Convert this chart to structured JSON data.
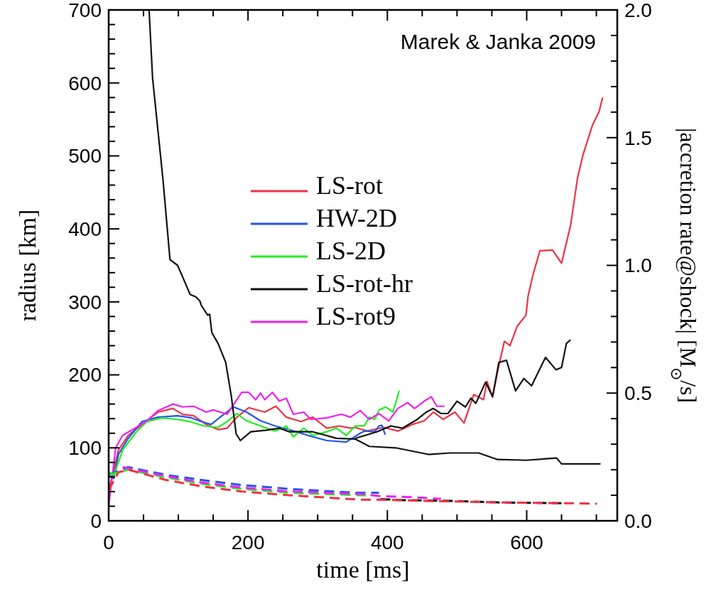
{
  "chart_data": {
    "type": "line",
    "xlabel": "time [ms]",
    "ylabel": "radius [km]",
    "y2label": "|accretion rate@shock| [M$_{⊙}$/s]",
    "annotations": [
      "Marek & Janka 2009"
    ],
    "xlim": [
      0,
      730
    ],
    "xticks": [
      0,
      {
        "value": 50,
        "label": null
      },
      {
        "value": 100,
        "label": null
      },
      {
        "value": 150,
        "label": null
      },
      200,
      {
        "value": 250,
        "label": null
      },
      {
        "value": 300,
        "label": null
      },
      {
        "value": 350,
        "label": null
      },
      400,
      {
        "value": 450,
        "label": null
      },
      {
        "value": 500,
        "label": null
      },
      {
        "value": 550,
        "label": null
      },
      600,
      {
        "value": 650,
        "label": null
      },
      {
        "value": 700,
        "label": null
      }
    ],
    "ylim": [
      0,
      700
    ],
    "yticks": [
      0,
      {
        "value": 20,
        "label": null
      },
      {
        "value": 40,
        "label": null
      },
      {
        "value": 60,
        "label": null
      },
      {
        "value": 80,
        "label": null
      },
      100,
      {
        "value": 120,
        "label": null
      },
      {
        "value": 140,
        "label": null
      },
      {
        "value": 160,
        "label": null
      },
      {
        "value": 180,
        "label": null
      },
      200,
      {
        "value": 220,
        "label": null
      },
      {
        "value": 240,
        "label": null
      },
      {
        "value": 260,
        "label": null
      },
      {
        "value": 280,
        "label": null
      },
      300,
      {
        "value": 320,
        "label": null
      },
      {
        "value": 340,
        "label": null
      },
      {
        "value": 360,
        "label": null
      },
      {
        "value": 380,
        "label": null
      },
      400,
      {
        "value": 420,
        "label": null
      },
      {
        "value": 440,
        "label": null
      },
      {
        "value": 460,
        "label": null
      },
      {
        "value": 480,
        "label": null
      },
      500,
      {
        "value": 520,
        "label": null
      },
      {
        "value": 540,
        "label": null
      },
      {
        "value": 560,
        "label": null
      },
      {
        "value": 580,
        "label": null
      },
      600,
      {
        "value": 620,
        "label": null
      },
      {
        "value": 640,
        "label": null
      },
      {
        "value": 660,
        "label": null
      },
      {
        "value": 680,
        "label": null
      },
      700
    ],
    "y2lim": [
      0,
      2
    ],
    "y2ticks": [
      {
        "value": 0,
        "label": "0.0"
      },
      {
        "value": 0.1,
        "label": null
      },
      {
        "value": 0.2,
        "label": null
      },
      {
        "value": 0.3,
        "label": null
      },
      {
        "value": 0.4,
        "label": null
      },
      0.5,
      {
        "value": 0.6,
        "label": null
      },
      {
        "value": 0.7,
        "label": null
      },
      {
        "value": 0.8,
        "label": null
      },
      {
        "value": 0.9,
        "label": null
      },
      {
        "value": 1,
        "label": "1.0"
      },
      {
        "value": 1.1,
        "label": null
      },
      {
        "value": 1.2,
        "label": null
      },
      {
        "value": 1.3,
        "label": null
      },
      {
        "value": 1.4,
        "label": null
      },
      1.5,
      {
        "value": 1.6,
        "label": null
      },
      {
        "value": 1.7,
        "label": null
      },
      {
        "value": 1.8,
        "label": null
      },
      {
        "value": 1.9,
        "label": null
      },
      {
        "value": 2,
        "label": "2.0"
      }
    ],
    "legend": "top",
    "grid": false,
    "marker": "none",
    "series": [
      {
        "name": "LS-rot",
        "color": "#ee3344",
        "x": [
          0,
          7,
          14,
          28,
          48,
          71,
          92,
          106,
          122,
          140,
          157,
          170,
          184,
          201,
          224,
          240,
          255,
          276,
          293,
          313,
          331,
          347,
          354,
          371,
          395,
          415,
          436,
          453,
          466,
          480,
          497,
          510,
          524,
          538,
          543,
          551,
          561,
          568,
          576,
          586,
          599,
          602,
          609,
          619,
          637,
          650,
          663,
          673,
          681,
          694,
          704,
          709
        ],
        "values": [
          42,
          68,
          97,
          117,
          132,
          149,
          154,
          146,
          144,
          132,
          125,
          127,
          142,
          155,
          149,
          157,
          142,
          136,
          142,
          127,
          130,
          127,
          128,
          123,
          128,
          123,
          132,
          137,
          149,
          139,
          149,
          134,
          173,
          166,
          191,
          170,
          217,
          246,
          240,
          266,
          282,
          308,
          337,
          370,
          371,
          353,
          405,
          470,
          502,
          541,
          561,
          580
        ]
      },
      {
        "name": "HW-2D",
        "color": "#2255ee",
        "x": [
          0,
          7,
          14,
          28,
          48,
          71,
          99,
          119,
          133,
          147,
          160,
          179,
          198,
          218,
          239,
          259,
          286,
          313,
          341,
          361,
          367,
          382,
          388,
          392,
          397
        ],
        "values": [
          64,
          58,
          91,
          113,
          136,
          142,
          144,
          141,
          136,
          132,
          142,
          156,
          149,
          137,
          130,
          125,
          117,
          110,
          108,
          120,
          123,
          122,
          130,
          131,
          118
        ]
      },
      {
        "name": "LS-2D",
        "color": "#22ee22",
        "x": [
          0,
          7,
          20,
          38,
          55,
          76,
          99,
          116,
          137,
          157,
          170,
          184,
          198,
          218,
          239,
          255,
          265,
          280,
          293,
          313,
          327,
          341,
          354,
          367,
          374,
          382,
          388,
          398,
          408,
          417
        ],
        "values": [
          68,
          61,
          97,
          120,
          136,
          141,
          139,
          136,
          130,
          128,
          136,
          147,
          137,
          130,
          123,
          130,
          115,
          127,
          117,
          122,
          127,
          117,
          130,
          130,
          142,
          139,
          152,
          156,
          149,
          178
        ]
      },
      {
        "name": "LS-rot-hr",
        "color": "#111111",
        "x": [
          354,
          385,
          405,
          422,
          443,
          456,
          466,
          477,
          487,
          500,
          512,
          520,
          527,
          541,
          551,
          560,
          571,
          584,
          596,
          607,
          627,
          642,
          650,
          657,
          663
        ],
        "values": [
          113,
          122,
          130,
          127,
          139,
          149,
          154,
          147,
          147,
          164,
          156,
          168,
          161,
          190,
          170,
          217,
          220,
          178,
          195,
          185,
          224,
          207,
          210,
          243,
          248
        ]
      },
      {
        "name": "LS-rot9",
        "color": "#ee22ee",
        "x": [
          0,
          10,
          20,
          38,
          55,
          71,
          92,
          106,
          122,
          140,
          150,
          170,
          191,
          201,
          211,
          218,
          224,
          235,
          245,
          255,
          265,
          280,
          290,
          313,
          334,
          347,
          361,
          374,
          388,
          402,
          415,
          429,
          439,
          453,
          463,
          471,
          482
        ],
        "values": [
          20,
          100,
          117,
          127,
          137,
          151,
          160,
          156,
          157,
          149,
          152,
          146,
          176,
          176,
          166,
          175,
          166,
          176,
          164,
          168,
          146,
          149,
          139,
          141,
          146,
          142,
          151,
          139,
          147,
          137,
          154,
          162,
          154,
          164,
          170,
          157,
          157
        ]
      },
      {
        "color": "#111111",
        "x": [
          58,
          63,
          78,
          88,
          99,
          117,
          125,
          131,
          133,
          142,
          145,
          148,
          157,
          168,
          176,
          183,
          189,
          204,
          225,
          245,
          259,
          293,
          327,
          354,
          374,
          412,
          459,
          490,
          531,
          558,
          599,
          643,
          650,
          706
        ],
        "values": [
          700,
          607,
          467,
          358,
          350,
          310,
          307,
          301,
          295,
          282,
          283,
          258,
          243,
          217,
          171,
          119,
          110,
          122,
          124,
          127,
          122,
          122,
          113,
          112,
          102,
          100,
          91,
          93,
          93,
          84,
          83,
          86,
          78,
          78
        ]
      },
      {
        "color": "#2255ee",
        "axis": "y2",
        "line_style": "dashed",
        "x": [
          0,
          28,
          82,
          133,
          191,
          259,
          354,
          388
        ],
        "values": [
          0.18,
          0.21,
          0.18,
          0.16,
          0.14,
          0.125,
          0.11,
          0.11
        ]
      },
      {
        "color": "#22ee22",
        "axis": "y2",
        "line_style": "dashed",
        "x": [
          0,
          28,
          82,
          133,
          191,
          259,
          361,
          375
        ],
        "values": [
          0.18,
          0.2,
          0.17,
          0.145,
          0.125,
          0.11,
          0.1,
          0.1
        ]
      },
      {
        "color": "#ee22ee",
        "axis": "y2",
        "line_style": "dashed",
        "x": [
          20,
          82,
          133,
          191,
          259,
          361,
          388,
          439,
          477
        ],
        "values": [
          0.21,
          0.175,
          0.15,
          0.13,
          0.115,
          0.105,
          0.097,
          0.092,
          0.086
        ]
      },
      {
        "color": "#111111",
        "axis": "y2",
        "line_style": "dashed",
        "x": [
          390,
          422,
          490,
          558,
          650
        ],
        "values": [
          0.085,
          0.081,
          0.078,
          0.072,
          0.069
        ]
      },
      {
        "color": "#ee3344",
        "axis": "y2",
        "line_style": "dashed",
        "x": [
          0,
          14,
          28,
          82,
          133,
          191,
          259,
          361,
          382,
          456,
          558,
          660,
          701
        ],
        "values": [
          0.12,
          0.19,
          0.2,
          0.16,
          0.135,
          0.115,
          0.1,
          0.083,
          0.083,
          0.078,
          0.072,
          0.069,
          0.067
        ]
      }
    ]
  }
}
